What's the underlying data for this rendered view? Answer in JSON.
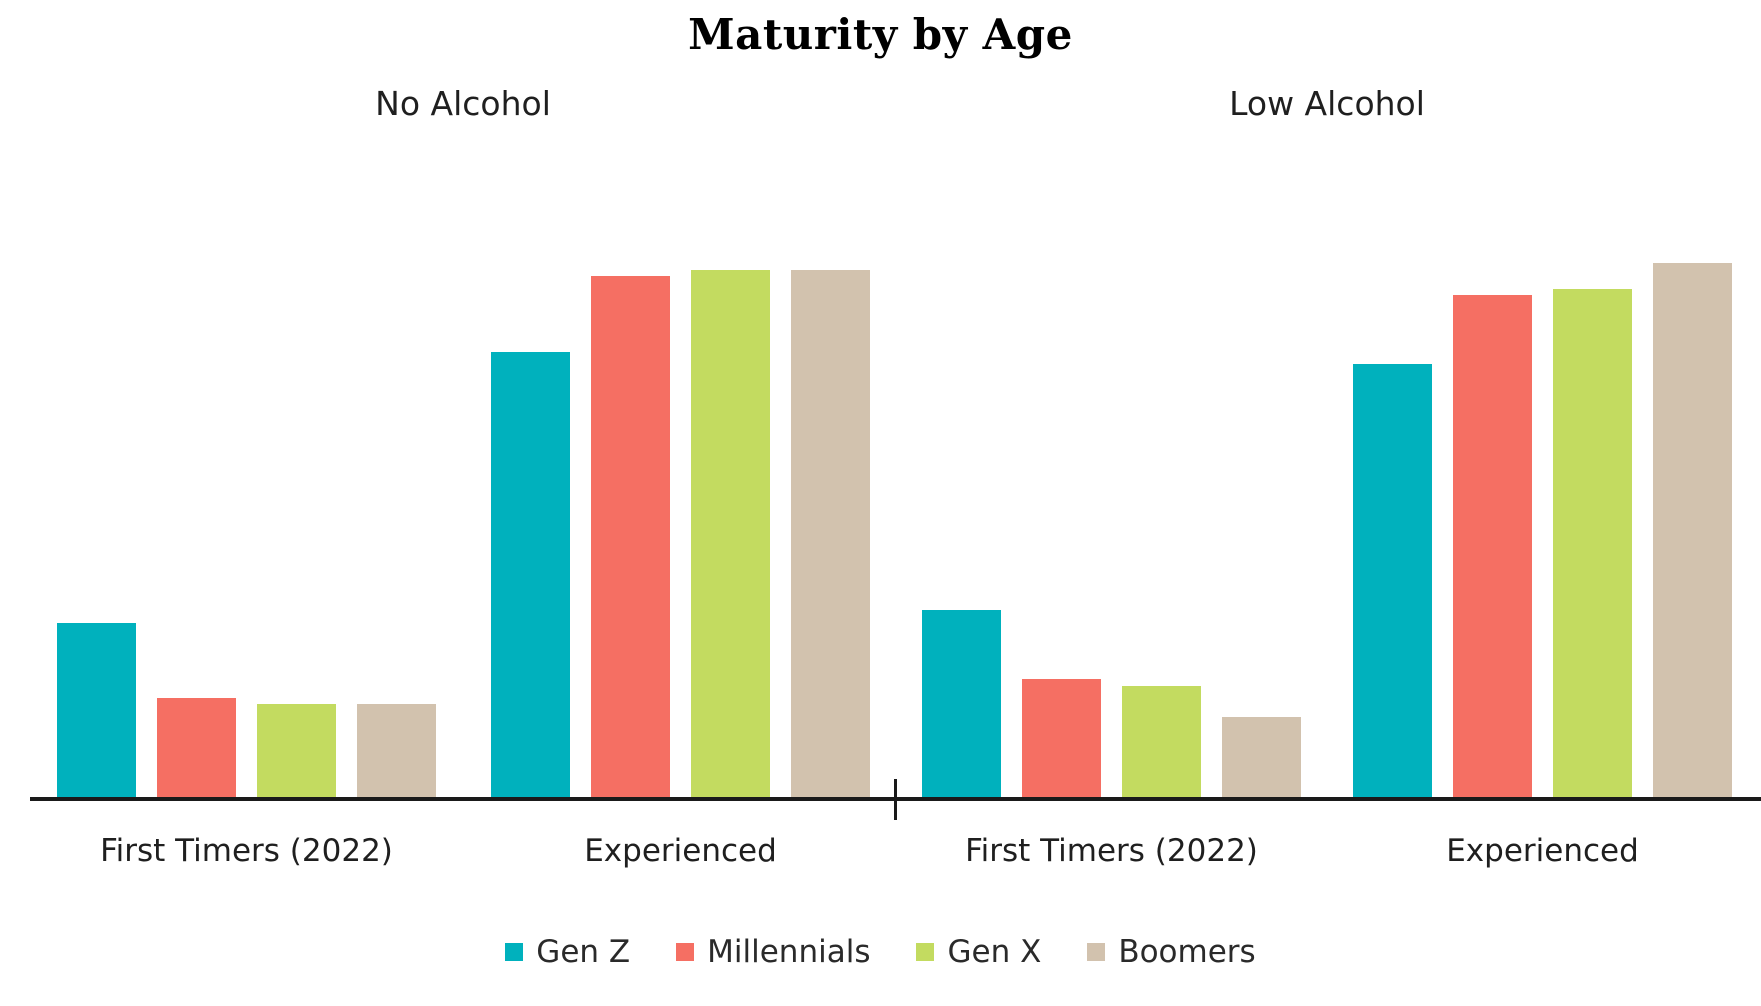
{
  "chart_data": {
    "type": "bar",
    "title": "Maturity by Age",
    "facets": [
      {
        "label": "No Alcohol"
      },
      {
        "label": "Low Alcohol"
      }
    ],
    "series": [
      {
        "name": "Gen Z",
        "color": "#00b1bd"
      },
      {
        "name": "Millennials",
        "color": "#f56f63"
      },
      {
        "name": "Gen X",
        "color": "#c3db60"
      },
      {
        "name": "Boomers",
        "color": "#d2c2ae"
      }
    ],
    "groups": [
      {
        "facet": "No Alcohol",
        "category": "First Timers (2022)",
        "values": [
          28,
          16,
          15,
          15
        ]
      },
      {
        "facet": "No Alcohol",
        "category": "Experienced",
        "values": [
          71,
          83,
          84,
          84
        ]
      },
      {
        "facet": "Low Alcohol",
        "category": "First Timers (2022)",
        "values": [
          30,
          19,
          18,
          13
        ]
      },
      {
        "facet": "Low Alcohol",
        "category": "Experienced",
        "values": [
          69,
          80,
          81,
          85
        ]
      }
    ],
    "ylim": [
      0,
      100
    ],
    "grid": false,
    "legend_position": "bottom",
    "axis_color": "#1a1a1a"
  }
}
